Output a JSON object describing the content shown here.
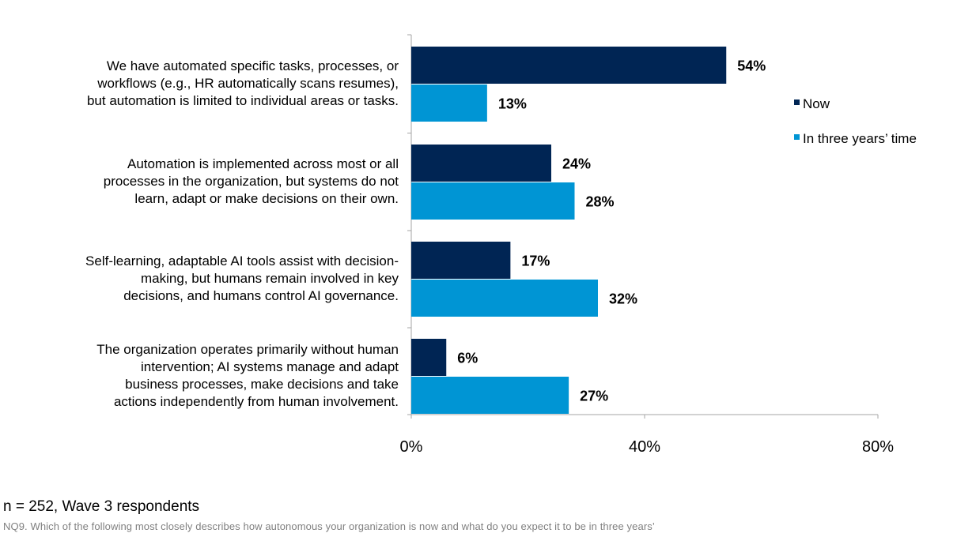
{
  "chart_data": {
    "type": "bar",
    "orientation": "horizontal",
    "categories": [
      "We have automated specific tasks, processes, or workflows (e.g., HR automatically scans resumes), but automation is limited to individual areas or tasks.",
      "Automation is implemented across most or all processes in the organization, but systems do not learn, adapt or make decisions on their own.",
      "Self-learning, adaptable AI tools assist with decision-making, but humans remain involved in key decisions, and humans control AI governance.",
      "The organization operates primarily without human intervention; AI systems manage and adapt business processes, make decisions and take actions independently from human involvement."
    ],
    "category_lines": [
      [
        "We have automated specific tasks, processes, or",
        "workflows (e.g., HR automatically scans resumes),",
        "but automation is limited to individual areas or tasks."
      ],
      [
        "Automation is implemented across most or all",
        "processes in the organization, but systems do not",
        "learn, adapt or make decisions on their own."
      ],
      [
        "Self-learning, adaptable AI tools assist with decision-",
        "making, but humans remain involved in key",
        "decisions, and humans control AI governance."
      ],
      [
        "The organization operates primarily without human",
        "intervention; AI systems manage and adapt",
        "business processes, make decisions and take",
        "actions independently from human involvement."
      ]
    ],
    "series": [
      {
        "name": "Now",
        "color": "#002554",
        "values": [
          54,
          24,
          17,
          6
        ],
        "labels": [
          "54%",
          "24%",
          "17%",
          "6%"
        ]
      },
      {
        "name": "In three years’ time",
        "color": "#0095d4",
        "values": [
          13,
          28,
          32,
          27
        ],
        "labels": [
          "13%",
          "28%",
          "32%",
          "27%"
        ]
      }
    ],
    "xlim": [
      0,
      80
    ],
    "xticks": [
      "0%",
      "40%",
      "80%"
    ],
    "xtick_values": [
      0,
      40,
      80
    ],
    "grid": false,
    "legend_position": "right"
  },
  "footnote": {
    "sample": "n = 252, Wave 3 respondents",
    "question": "NQ9. Which of the following most closely describes how autonomous your organization is now and what do you expect it to be in three years’"
  }
}
